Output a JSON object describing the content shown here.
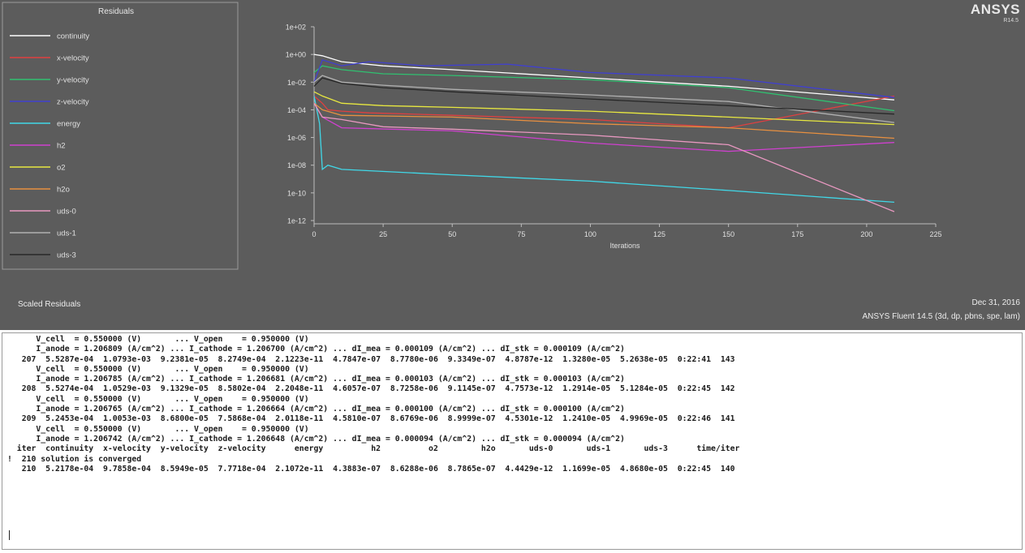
{
  "plot": {
    "legend_title": "Residuals",
    "bottom_label": "Scaled Residuals",
    "date": "Dec 31, 2016",
    "version": "ANSYS Fluent 14.5 (3d, dp, pbns, spe, lam)",
    "brand": "ANSYS",
    "brand_sub": "R14.5"
  },
  "chart_data": {
    "type": "line",
    "title": "Residuals",
    "xlabel": "Iterations",
    "ylabel": "",
    "log_y": true,
    "xlim": [
      0,
      225
    ],
    "ylim": [
      1e-12,
      100.0
    ],
    "x_ticks": [
      0,
      25,
      50,
      75,
      100,
      125,
      150,
      175,
      200,
      225
    ],
    "y_ticks": [
      100.0,
      1,
      0.01,
      0.0001,
      1e-06,
      1e-08,
      1e-10,
      1e-12
    ],
    "x_tick_labels": [
      "0",
      "25",
      "50",
      "75",
      "100",
      "125",
      "150",
      "175",
      "200",
      "225"
    ],
    "y_tick_labels": [
      "1e+02",
      "1e+00",
      "1e-02",
      "1e-04",
      "1e-06",
      "1e-08",
      "1e-10",
      "1e-12"
    ],
    "grid": false,
    "legend_position": "left",
    "series": [
      {
        "name": "continuity",
        "color": "#ffffff",
        "x": [
          0,
          3,
          10,
          25,
          50,
          100,
          150,
          210
        ],
        "y": [
          1.0,
          0.8,
          0.3,
          0.15,
          0.08,
          0.02,
          0.005,
          0.00052
        ]
      },
      {
        "name": "x-velocity",
        "color": "#e04040",
        "x": [
          0,
          3,
          5,
          10,
          20,
          50,
          100,
          150,
          210
        ],
        "y": [
          0.001,
          0.0003,
          0.0001,
          8e-05,
          6e-05,
          4e-05,
          2e-05,
          5e-06,
          0.00098
        ]
      },
      {
        "name": "y-velocity",
        "color": "#30c070",
        "x": [
          0,
          3,
          10,
          25,
          50,
          100,
          150,
          210
        ],
        "y": [
          0.05,
          0.15,
          0.08,
          0.04,
          0.03,
          0.015,
          0.004,
          8.6e-05
        ]
      },
      {
        "name": "z-velocity",
        "color": "#4040d0",
        "x": [
          0,
          3,
          10,
          20,
          40,
          70,
          100,
          150,
          210
        ],
        "y": [
          0.01,
          0.4,
          0.15,
          0.3,
          0.15,
          0.2,
          0.05,
          0.02,
          0.00078
        ]
      },
      {
        "name": "energy",
        "color": "#40d8e8",
        "x": [
          0,
          2,
          3,
          5,
          10,
          50,
          100,
          150,
          210
        ],
        "y": [
          0.001,
          1e-05,
          5e-09,
          1e-08,
          5e-09,
          2e-09,
          7e-10,
          1.5e-10,
          2.1e-11
        ]
      },
      {
        "name": "h2",
        "color": "#d040d0",
        "x": [
          0,
          3,
          10,
          50,
          100,
          150,
          210
        ],
        "y": [
          0.0003,
          3e-05,
          5e-06,
          3e-06,
          4e-07,
          1e-07,
          4.4e-07
        ]
      },
      {
        "name": "o2",
        "color": "#e8e840",
        "x": [
          0,
          3,
          10,
          25,
          50,
          100,
          150,
          210
        ],
        "y": [
          0.002,
          0.001,
          0.0003,
          0.0002,
          0.00015,
          8e-05,
          3e-05,
          8.6e-06
        ]
      },
      {
        "name": "h2o",
        "color": "#e89040",
        "x": [
          0,
          3,
          10,
          50,
          100,
          150,
          210
        ],
        "y": [
          0.0003,
          0.0001,
          4e-05,
          3e-05,
          1e-05,
          5e-06,
          8.8e-07
        ]
      },
      {
        "name": "uds-0",
        "color": "#e898c0",
        "x": [
          0,
          3,
          10,
          25,
          50,
          100,
          150,
          210
        ],
        "y": [
          0.0003,
          3e-05,
          2e-05,
          6e-06,
          4e-06,
          1.5e-06,
          3e-07,
          4.4e-12
        ]
      },
      {
        "name": "uds-1",
        "color": "#b0b0b0",
        "x": [
          0,
          3,
          10,
          25,
          50,
          100,
          150,
          210
        ],
        "y": [
          0.01,
          0.03,
          0.01,
          0.006,
          0.003,
          0.0012,
          0.0004,
          1.2e-05
        ]
      },
      {
        "name": "uds-3",
        "color": "#282828",
        "x": [
          0,
          3,
          10,
          25,
          50,
          100,
          150,
          210
        ],
        "y": [
          0.005,
          0.02,
          0.008,
          0.004,
          0.002,
          0.0006,
          0.0002,
          4.9e-05
        ]
      }
    ]
  },
  "console": {
    "lines": [
      "      V_cell  = 0.550000 (V)       ... V_open    = 0.950000 (V)",
      "      I_anode = 1.206809 (A/cm^2) ... I_cathode = 1.206700 (A/cm^2) ... dI_mea = 0.000109 (A/cm^2) ... dI_stk = 0.000109 (A/cm^2)",
      "   207  5.5287e-04  1.0793e-03  9.2381e-05  8.2749e-04  2.1223e-11  4.7847e-07  8.7780e-06  9.3349e-07  4.8787e-12  1.3280e-05  5.2638e-05  0:22:41  143",
      "      V_cell  = 0.550000 (V)       ... V_open    = 0.950000 (V)",
      "      I_anode = 1.206785 (A/cm^2) ... I_cathode = 1.206681 (A/cm^2) ... dI_mea = 0.000103 (A/cm^2) ... dI_stk = 0.000103 (A/cm^2)",
      "   208  5.5274e-04  1.0529e-03  9.1329e-05  8.5802e-04  2.2048e-11  4.6057e-07  8.7258e-06  9.1145e-07  4.7573e-12  1.2914e-05  5.1284e-05  0:22:45  142",
      "      V_cell  = 0.550000 (V)       ... V_open    = 0.950000 (V)",
      "      I_anode = 1.206765 (A/cm^2) ... I_cathode = 1.206664 (A/cm^2) ... dI_mea = 0.000100 (A/cm^2) ... dI_stk = 0.000100 (A/cm^2)",
      "   209  5.2453e-04  1.0053e-03  8.6800e-05  7.5868e-04  2.0118e-11  4.5810e-07  8.6769e-06  8.9999e-07  4.5301e-12  1.2410e-05  4.9969e-05  0:22:46  141",
      "      V_cell  = 0.550000 (V)       ... V_open    = 0.950000 (V)",
      "      I_anode = 1.206742 (A/cm^2) ... I_cathode = 1.206648 (A/cm^2) ... dI_mea = 0.000094 (A/cm^2) ... dI_stk = 0.000094 (A/cm^2)",
      "  iter  continuity  x-velocity  y-velocity  z-velocity      energy          h2          o2         h2o       uds-0       uds-1       uds-3      time/iter",
      "!  210 solution is converged",
      "   210  5.2178e-04  9.7858e-04  8.5949e-05  7.7718e-04  2.1072e-11  4.3883e-07  8.6288e-06  8.7865e-07  4.4429e-12  1.1699e-05  4.8680e-05  0:22:45  140"
    ]
  }
}
